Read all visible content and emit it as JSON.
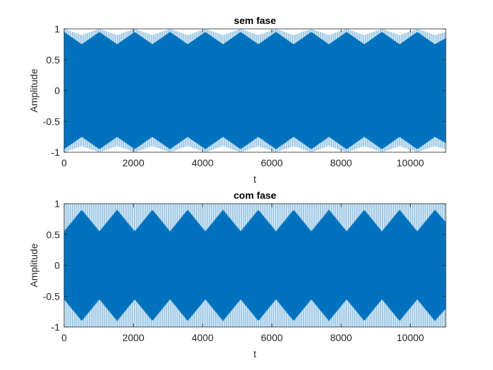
{
  "chart_data": [
    {
      "type": "line",
      "title": "sem fase",
      "xlabel": "t",
      "ylabel": "Amplitude",
      "xlim": [
        0,
        11025
      ],
      "ylim": [
        -1,
        1
      ],
      "xticks": [
        0,
        2000,
        4000,
        6000,
        8000,
        10000
      ],
      "xtick_labels": [
        "0",
        "2000",
        "4000",
        "6000",
        "8000",
        "10000"
      ],
      "yticks": [
        -1,
        -0.5,
        0,
        0.5,
        1
      ],
      "ytick_labels": [
        "-1",
        "-0.5",
        "0",
        "0.5",
        "1"
      ],
      "grid": false,
      "series": [
        {
          "color": "#0072BD",
          "envelope": {
            "t": [
              0,
              510,
              1020,
              1530,
              2040,
              2550,
              3060,
              3570,
              4080,
              4590,
              5100,
              5610,
              6120,
              6630,
              7140,
              7650,
              8160,
              8670,
              9180,
              9690,
              10200,
              10710,
              11025
            ],
            "upper": [
              0.95,
              0.75,
              0.95,
              0.75,
              0.95,
              0.75,
              0.95,
              0.75,
              0.95,
              0.75,
              0.95,
              0.75,
              0.95,
              0.75,
              0.95,
              0.75,
              0.95,
              0.75,
              0.95,
              0.75,
              0.95,
              0.75,
              0.85
            ],
            "outer": [
              1.0,
              0.9,
              1.0,
              0.9,
              1.0,
              0.9,
              1.0,
              0.9,
              1.0,
              0.9,
              1.0,
              0.9,
              1.0,
              0.9,
              1.0,
              0.9,
              1.0,
              0.9,
              1.0,
              0.9,
              1.0,
              0.9,
              0.95
            ]
          }
        }
      ]
    },
    {
      "type": "line",
      "title": "com fase",
      "xlabel": "t",
      "ylabel": "Amplitude",
      "xlim": [
        0,
        11025
      ],
      "ylim": [
        -1,
        1
      ],
      "xticks": [
        0,
        2000,
        4000,
        6000,
        8000,
        10000
      ],
      "xtick_labels": [
        "0",
        "2000",
        "4000",
        "6000",
        "8000",
        "10000"
      ],
      "yticks": [
        -1,
        -0.5,
        0,
        0.5,
        1
      ],
      "ytick_labels": [
        "-1",
        "-0.5",
        "0",
        "0.5",
        "1"
      ],
      "grid": false,
      "series": [
        {
          "color": "#0072BD",
          "envelope": {
            "t": [
              0,
              510,
              1020,
              1530,
              2040,
              2550,
              3060,
              3570,
              4080,
              4590,
              5100,
              5610,
              6120,
              6630,
              7140,
              7650,
              8160,
              8670,
              9180,
              9690,
              10200,
              10710,
              11025
            ],
            "upper": [
              0.55,
              0.9,
              0.55,
              0.9,
              0.55,
              0.9,
              0.55,
              0.9,
              0.55,
              0.9,
              0.55,
              0.9,
              0.55,
              0.9,
              0.55,
              0.9,
              0.55,
              0.9,
              0.55,
              0.9,
              0.55,
              0.9,
              0.7
            ],
            "outer": [
              1.0,
              1.0,
              1.0,
              1.0,
              1.0,
              1.0,
              1.0,
              1.0,
              1.0,
              1.0,
              1.0,
              1.0,
              1.0,
              1.0,
              1.0,
              1.0,
              1.0,
              1.0,
              1.0,
              1.0,
              1.0,
              1.0,
              1.0
            ]
          }
        }
      ]
    }
  ]
}
